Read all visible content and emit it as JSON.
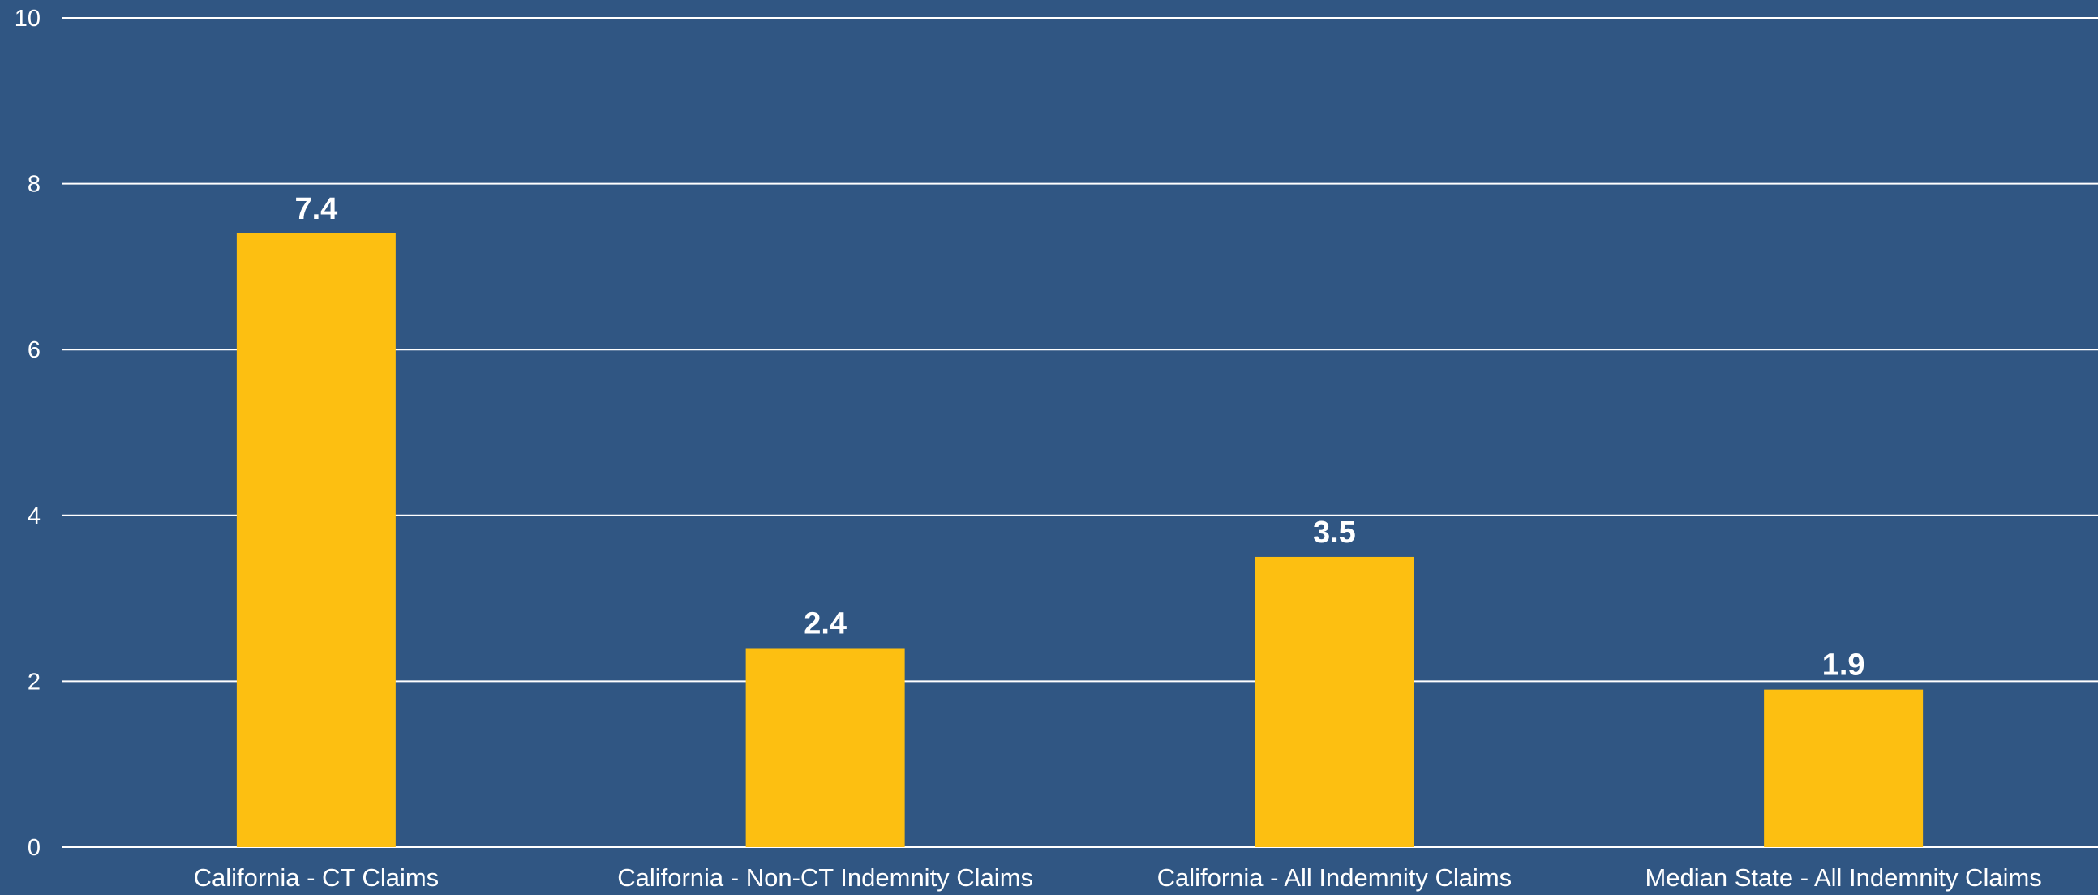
{
  "chart_data": {
    "type": "bar",
    "categories": [
      "California - CT Claims",
      "California - Non-CT Indemnity Claims",
      "California - All Indemnity Claims",
      "Median State - All Indemnity Claims"
    ],
    "values": [
      7.4,
      2.4,
      3.5,
      1.9
    ],
    "data_labels": [
      "7.4",
      "2.4",
      "3.5",
      "1.9"
    ],
    "ylim": [
      0,
      10
    ],
    "y_ticks": [
      "0",
      "2",
      "4",
      "6",
      "8",
      "10"
    ],
    "title": "",
    "xlabel": "",
    "ylabel": "",
    "grid": true,
    "legend": "none",
    "colors": {
      "background": "#305683",
      "bar": "#FDBF11",
      "text": "#FFFFFF",
      "grid": "#FFFFFF"
    }
  }
}
